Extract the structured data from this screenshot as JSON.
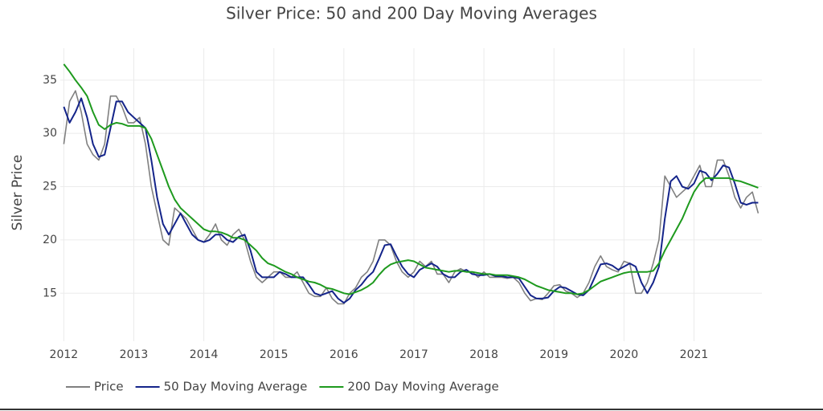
{
  "chart_data": {
    "type": "line",
    "title": "Silver Price: 50 and 200 Day Moving Averages",
    "y_label": "Silver Price",
    "xlim": [
      2011.95,
      2021.97
    ],
    "xticks": [
      2012,
      2013,
      2014,
      2015,
      2016,
      2017,
      2018,
      2019,
      2020,
      2021
    ],
    "ylim": [
      10.5,
      38
    ],
    "yticks": [
      15,
      20,
      25,
      30,
      35
    ],
    "grid": true,
    "legend": "bottom-left",
    "x": [
      2012,
      2012.083,
      2012.167,
      2012.25,
      2012.333,
      2012.417,
      2012.5,
      2012.583,
      2012.667,
      2012.75,
      2012.833,
      2012.917,
      2013,
      2013.083,
      2013.167,
      2013.25,
      2013.333,
      2013.417,
      2013.5,
      2013.583,
      2013.667,
      2013.75,
      2013.833,
      2013.917,
      2014,
      2014.083,
      2014.167,
      2014.25,
      2014.333,
      2014.417,
      2014.5,
      2014.583,
      2014.667,
      2014.75,
      2014.833,
      2014.917,
      2015,
      2015.083,
      2015.167,
      2015.25,
      2015.333,
      2015.417,
      2015.5,
      2015.583,
      2015.667,
      2015.75,
      2015.833,
      2015.917,
      2016,
      2016.083,
      2016.167,
      2016.25,
      2016.333,
      2016.417,
      2016.5,
      2016.583,
      2016.667,
      2016.75,
      2016.833,
      2016.917,
      2017,
      2017.083,
      2017.167,
      2017.25,
      2017.333,
      2017.417,
      2017.5,
      2017.583,
      2017.667,
      2017.75,
      2017.833,
      2017.917,
      2018,
      2018.083,
      2018.167,
      2018.25,
      2018.333,
      2018.417,
      2018.5,
      2018.583,
      2018.667,
      2018.75,
      2018.833,
      2018.917,
      2019,
      2019.083,
      2019.167,
      2019.25,
      2019.333,
      2019.417,
      2019.5,
      2019.583,
      2019.667,
      2019.75,
      2019.833,
      2019.917,
      2020,
      2020.083,
      2020.167,
      2020.25,
      2020.333,
      2020.417,
      2020.5,
      2020.583,
      2020.667,
      2020.75,
      2020.833,
      2020.917,
      2021,
      2021.083,
      2021.167,
      2021.25,
      2021.333,
      2021.417,
      2021.5,
      2021.583,
      2021.667,
      2021.75,
      2021.833,
      2021.917
    ],
    "series": [
      {
        "name": "Price",
        "color": "#808080",
        "values": [
          29,
          33,
          34,
          32,
          29,
          28,
          27.5,
          29,
          33.5,
          33.5,
          32.5,
          31,
          31,
          31.5,
          29,
          25,
          22.5,
          20,
          19.5,
          23,
          22.5,
          22,
          21,
          20,
          19.8,
          20.5,
          21.5,
          20,
          19.5,
          20.5,
          21,
          20,
          18,
          16.5,
          16,
          16.5,
          17,
          17,
          16.5,
          16.5,
          17,
          16,
          15,
          14.7,
          14.7,
          15.5,
          14.5,
          14,
          14,
          15,
          15.5,
          16.5,
          17,
          18,
          20,
          20,
          19.5,
          18,
          17,
          16.5,
          17,
          18,
          17.5,
          18,
          16.8,
          16.8,
          16,
          17,
          17.3,
          17,
          17,
          16.5,
          17,
          16.5,
          16.5,
          16.5,
          16.4,
          16.5,
          16,
          15,
          14.3,
          14.5,
          14.4,
          15,
          15.7,
          15.8,
          15.2,
          15,
          14.6,
          15,
          16,
          17.5,
          18.5,
          17.5,
          17.2,
          17,
          18,
          17.8,
          15,
          15,
          16,
          17.8,
          20,
          26,
          25,
          24,
          24.5,
          25,
          26,
          27,
          25,
          25,
          27.5,
          27.5,
          26,
          24,
          23,
          24,
          24.5,
          22.5
        ]
      },
      {
        "name": "50 Day Moving Average",
        "color": "#14248a",
        "values": [
          32.5,
          31,
          32,
          33.3,
          31.5,
          29,
          27.8,
          28,
          30.5,
          33,
          33,
          32,
          31.5,
          31,
          30.5,
          27.5,
          24,
          21.5,
          20.5,
          21.5,
          22.5,
          21.5,
          20.5,
          20,
          19.8,
          20,
          20.5,
          20.5,
          20,
          19.8,
          20.3,
          20.5,
          19,
          17,
          16.5,
          16.5,
          16.5,
          17,
          16.8,
          16.5,
          16.5,
          16.5,
          15.8,
          15,
          14.8,
          15,
          15.2,
          14.5,
          14.1,
          14.5,
          15.3,
          15.8,
          16.5,
          17,
          18.2,
          19.5,
          19.6,
          18.5,
          17.5,
          16.8,
          16.5,
          17.2,
          17.5,
          17.8,
          17.5,
          16.8,
          16.5,
          16.5,
          17,
          17.2,
          16.8,
          16.7,
          16.7,
          16.8,
          16.6,
          16.6,
          16.5,
          16.5,
          16.4,
          15.6,
          14.8,
          14.5,
          14.5,
          14.6,
          15.2,
          15.6,
          15.5,
          15.2,
          14.9,
          14.8,
          15.3,
          16.5,
          17.7,
          17.8,
          17.6,
          17.2,
          17.5,
          17.8,
          17.5,
          16,
          15,
          16,
          17.5,
          22,
          25.5,
          26,
          25,
          24.8,
          25.3,
          26.5,
          26.3,
          25.6,
          26.2,
          27,
          26.8,
          25.3,
          23.5,
          23.3,
          23.5,
          23.5
        ]
      },
      {
        "name": "200 Day Moving Average",
        "color": "#1e9a1e",
        "values": [
          36.5,
          35.8,
          35,
          34.3,
          33.5,
          32,
          30.8,
          30.4,
          30.8,
          31,
          30.9,
          30.7,
          30.7,
          30.7,
          30.5,
          29.5,
          28,
          26.5,
          25,
          23.8,
          23,
          22.5,
          22,
          21.5,
          21,
          20.8,
          20.8,
          20.7,
          20.5,
          20.2,
          20.2,
          20,
          19.5,
          19,
          18.3,
          17.8,
          17.6,
          17.3,
          17,
          16.8,
          16.5,
          16.3,
          16.1,
          16,
          15.8,
          15.5,
          15.4,
          15.2,
          15,
          14.9,
          15.1,
          15.3,
          15.6,
          16,
          16.7,
          17.3,
          17.7,
          17.9,
          18,
          18.1,
          18,
          17.7,
          17.4,
          17.3,
          17.2,
          17.1,
          17,
          17.1,
          17.1,
          17,
          17,
          16.9,
          16.8,
          16.8,
          16.7,
          16.7,
          16.7,
          16.6,
          16.5,
          16.3,
          16,
          15.7,
          15.5,
          15.3,
          15.2,
          15.1,
          15,
          15,
          14.9,
          15,
          15.3,
          15.7,
          16.1,
          16.3,
          16.5,
          16.7,
          16.9,
          17,
          17,
          17,
          17,
          17.1,
          17.8,
          19,
          20,
          21,
          22,
          23.3,
          24.5,
          25.3,
          25.8,
          25.8,
          25.8,
          25.8,
          25.8,
          25.6,
          25.5,
          25.3,
          25.1,
          24.9
        ]
      }
    ]
  }
}
